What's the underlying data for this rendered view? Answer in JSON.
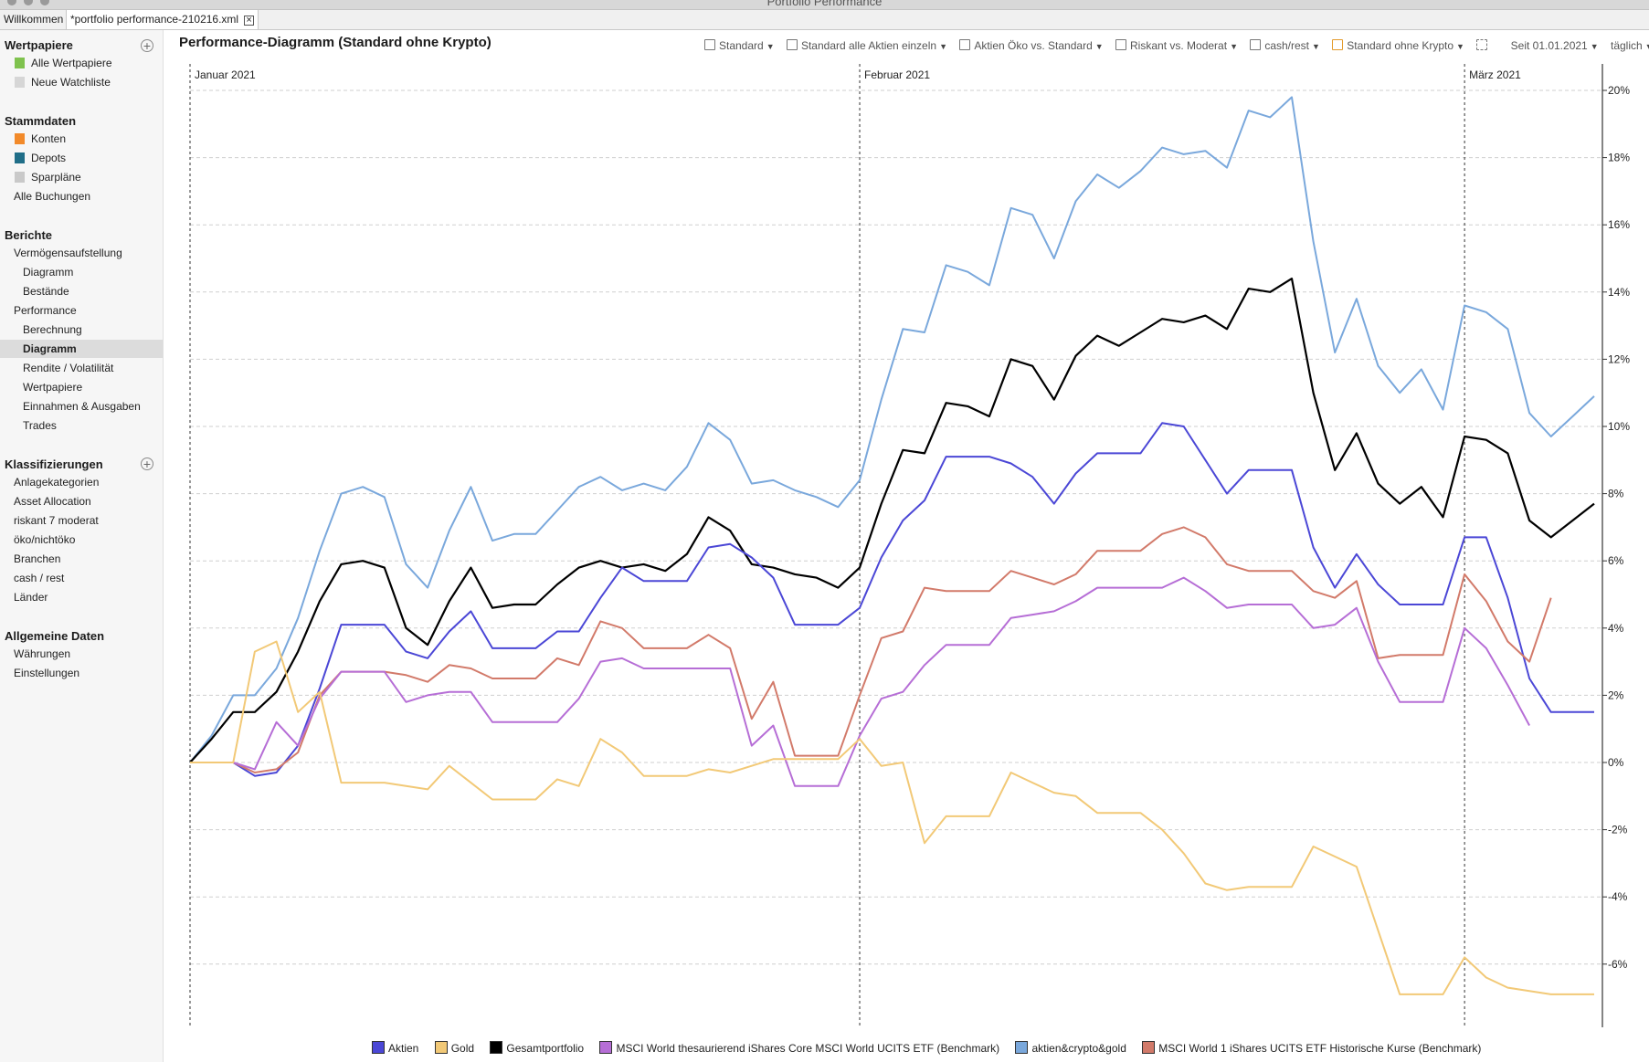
{
  "window": {
    "title": "Portfolio Performance"
  },
  "tabs": [
    {
      "label": "Willkommen"
    },
    {
      "label": "*portfolio performance-210216.xml"
    }
  ],
  "sidebar": {
    "wertpapiere": {
      "title": "Wertpapiere",
      "items": [
        "Alle Wertpapiere",
        "Neue Watchliste"
      ]
    },
    "stammdaten": {
      "title": "Stammdaten",
      "items": [
        "Konten",
        "Depots",
        "Sparpläne",
        "Alle Buchungen"
      ]
    },
    "berichte": {
      "title": "Berichte",
      "items": [
        "Vermögensaufstellung",
        "Diagramm",
        "Bestände",
        "Performance",
        "Berechnung",
        "Diagramm",
        "Rendite / Volatilität",
        "Wertpapiere",
        "Einnahmen & Ausgaben",
        "Trades"
      ]
    },
    "klassifizierungen": {
      "title": "Klassifizierungen",
      "items": [
        "Anlagekategorien",
        "Asset Allocation",
        "riskant 7 moderat",
        "öko/nichtöko",
        "Branchen",
        "cash / rest",
        "Länder"
      ]
    },
    "allgemein": {
      "title": "Allgemeine Daten",
      "items": [
        "Währungen",
        "Einstellungen"
      ]
    }
  },
  "chart_title": "Performance-Diagramm (Standard ohne Krypto)",
  "toolbar": {
    "views": [
      "Standard",
      "Standard alle Aktien einzeln",
      "Aktien Öko vs. Standard",
      "Riskant vs. Moderat",
      "cash/rest",
      "Standard ohne Krypto"
    ],
    "period": "Seit 01.01.2021",
    "interval": "täglich"
  },
  "chart_data": {
    "type": "line",
    "y_unit": "%",
    "ylim": [
      -7.6,
      20.5
    ],
    "yticks": [
      "20%",
      "18%",
      "16%",
      "14%",
      "12%",
      "10%",
      "8%",
      "6%",
      "4%",
      "2%",
      "0%",
      "-2%",
      "-4%",
      "-6%"
    ],
    "month_labels": [
      "Januar 2021",
      "Februar 2021",
      "März 2021"
    ],
    "month_index": [
      0,
      31,
      59
    ],
    "grid": true,
    "legend_position": "bottom",
    "series": [
      {
        "name": "aktien&crypto&gold",
        "color": "#7aa8dc",
        "values": [
          0,
          0.8,
          2.0,
          2.0,
          2.8,
          4.3,
          6.3,
          8.0,
          8.2,
          7.9,
          5.9,
          5.2,
          6.9,
          8.2,
          6.6,
          6.8,
          6.8,
          7.5,
          8.2,
          8.5,
          8.1,
          8.3,
          8.1,
          8.8,
          10.1,
          9.6,
          8.3,
          8.4,
          8.1,
          7.9,
          7.6,
          8.4,
          10.8,
          12.9,
          12.8,
          14.8,
          14.6,
          14.2,
          16.5,
          16.3,
          15.0,
          16.7,
          17.5,
          17.1,
          17.6,
          18.3,
          18.1,
          18.2,
          17.7,
          19.4,
          19.2,
          19.8,
          15.5,
          12.2,
          13.8,
          11.8,
          11.0,
          11.7,
          10.5,
          13.6,
          13.4,
          12.9,
          10.4,
          9.7,
          10.3,
          10.9
        ]
      },
      {
        "name": "Gesamtportfolio",
        "color": "#000000",
        "values": [
          0,
          0.7,
          1.5,
          1.5,
          2.1,
          3.3,
          4.8,
          5.9,
          6.0,
          5.8,
          4.0,
          3.5,
          4.8,
          5.8,
          4.6,
          4.7,
          4.7,
          5.3,
          5.8,
          6.0,
          5.8,
          5.9,
          5.7,
          6.2,
          7.3,
          6.9,
          5.9,
          5.8,
          5.6,
          5.5,
          5.2,
          5.8,
          7.7,
          9.3,
          9.2,
          10.7,
          10.6,
          10.3,
          12.0,
          11.8,
          10.8,
          12.1,
          12.7,
          12.4,
          12.8,
          13.2,
          13.1,
          13.3,
          12.9,
          14.1,
          14.0,
          14.4,
          11.0,
          8.7,
          9.8,
          8.3,
          7.7,
          8.2,
          7.3,
          9.7,
          9.6,
          9.2,
          7.2,
          6.7,
          7.2,
          7.7
        ]
      },
      {
        "name": "Aktien",
        "color": "#4b47d6",
        "values": [
          0,
          0,
          0,
          -0.4,
          -0.3,
          0.5,
          2.2,
          4.1,
          4.1,
          4.1,
          3.3,
          3.1,
          3.9,
          4.5,
          3.4,
          3.4,
          3.4,
          3.9,
          3.9,
          4.9,
          5.8,
          5.4,
          5.4,
          5.4,
          6.4,
          6.5,
          6.1,
          5.5,
          4.1,
          4.1,
          4.1,
          4.6,
          6.1,
          7.2,
          7.8,
          9.1,
          9.1,
          9.1,
          8.9,
          8.5,
          7.7,
          8.6,
          9.2,
          9.2,
          9.2,
          10.1,
          10.0,
          9.0,
          8.0,
          8.7,
          8.7,
          8.7,
          6.4,
          5.2,
          6.2,
          5.3,
          4.7,
          4.7,
          4.7,
          6.7,
          6.7,
          4.9,
          2.5,
          1.5,
          1.5,
          1.5
        ]
      },
      {
        "name": "MSCI World 1  iShares UCITS ETF Historische Kurse (Benchmark)",
        "color": "#d27a6a",
        "values": [
          0,
          0,
          0,
          -0.3,
          -0.2,
          0.3,
          2.0,
          2.7,
          2.7,
          2.7,
          2.6,
          2.4,
          2.9,
          2.8,
          2.5,
          2.5,
          2.5,
          3.1,
          2.9,
          4.2,
          4.0,
          3.4,
          3.4,
          3.4,
          3.8,
          3.4,
          1.3,
          2.4,
          0.2,
          0.2,
          0.2,
          2.0,
          3.7,
          3.9,
          5.2,
          5.1,
          5.1,
          5.1,
          5.7,
          5.5,
          5.3,
          5.6,
          6.3,
          6.3,
          6.3,
          6.8,
          7.0,
          6.7,
          5.9,
          5.7,
          5.7,
          5.7,
          5.1,
          4.9,
          5.4,
          3.1,
          3.2,
          3.2,
          3.2,
          5.6,
          4.8,
          3.6,
          3.0,
          4.9,
          null,
          null
        ]
      },
      {
        "name": "MSCI World thesaurierend iShares Core MSCI World UCITS ETF (Benchmark)",
        "color": "#b66ed6",
        "values": [
          0,
          0,
          0,
          -0.2,
          1.2,
          0.5,
          1.9,
          2.7,
          2.7,
          2.7,
          1.8,
          2.0,
          2.1,
          2.1,
          1.2,
          1.2,
          1.2,
          1.2,
          1.9,
          3.0,
          3.1,
          2.8,
          2.8,
          2.8,
          2.8,
          2.8,
          0.5,
          1.1,
          -0.7,
          -0.7,
          -0.7,
          0.8,
          1.9,
          2.1,
          2.9,
          3.5,
          3.5,
          3.5,
          4.3,
          4.4,
          4.5,
          4.8,
          5.2,
          5.2,
          5.2,
          5.2,
          5.5,
          5.1,
          4.6,
          4.7,
          4.7,
          4.7,
          4.0,
          4.1,
          4.6,
          3.0,
          1.8,
          1.8,
          1.8,
          4.0,
          3.4,
          2.3,
          1.1,
          null,
          null,
          null
        ]
      },
      {
        "name": "Gold",
        "color": "#f2c977",
        "values": [
          0,
          0,
          0,
          3.3,
          3.6,
          1.5,
          2.1,
          -0.6,
          -0.6,
          -0.6,
          -0.7,
          -0.8,
          -0.1,
          -0.6,
          -1.1,
          -1.1,
          -1.1,
          -0.5,
          -0.7,
          0.7,
          0.3,
          -0.4,
          -0.4,
          -0.4,
          -0.2,
          -0.3,
          -0.1,
          0.1,
          0.1,
          0.1,
          0.1,
          0.7,
          -0.1,
          0.0,
          -2.4,
          -1.6,
          -1.6,
          -1.6,
          -0.3,
          -0.6,
          -0.9,
          -1.0,
          -1.5,
          -1.5,
          -1.5,
          -2.0,
          -2.7,
          -3.6,
          -3.8,
          -3.7,
          -3.7,
          -3.7,
          -2.5,
          -2.8,
          -3.1,
          -5.0,
          -6.9,
          -6.9,
          -6.9,
          -5.8,
          -6.4,
          -6.7,
          -6.8,
          -6.9,
          -6.9,
          -6.9
        ]
      }
    ]
  },
  "legend_order": [
    "Aktien",
    "Gold",
    "Gesamtportfolio",
    "MSCI World thesaurierend iShares Core MSCI World UCITS ETF (Benchmark)",
    "aktien&crypto&gold",
    "MSCI World 1  iShares UCITS ETF Historische Kurse (Benchmark)"
  ],
  "legend_colors": [
    "#4b47d6",
    "#f2c977",
    "#000000",
    "#b66ed6",
    "#7aa8dc",
    "#d27a6a"
  ]
}
